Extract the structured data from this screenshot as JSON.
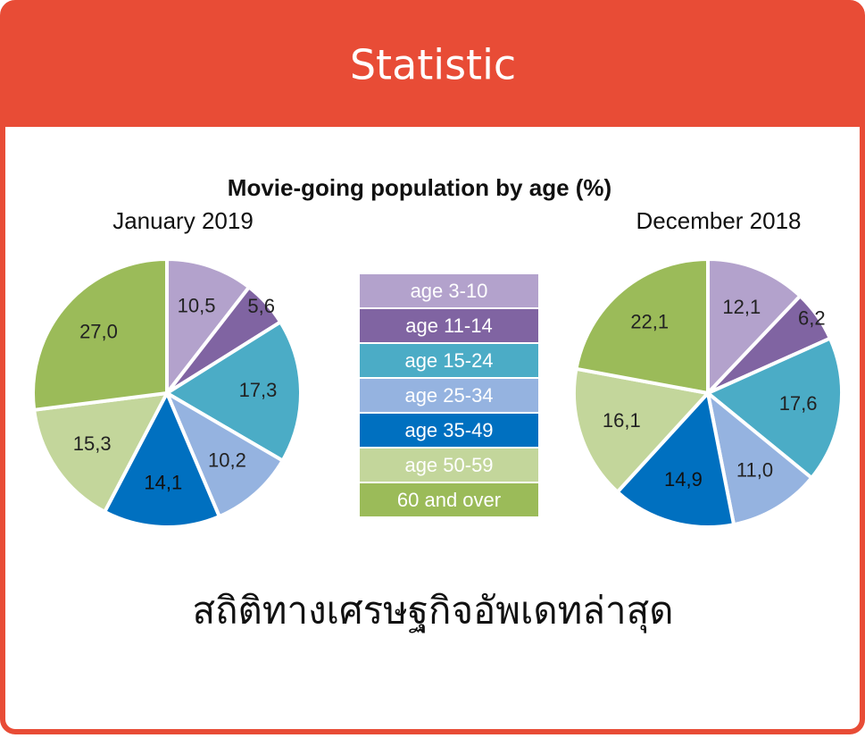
{
  "header": {
    "title": "Statistic"
  },
  "chart_data": [
    {
      "type": "pie",
      "title": "Movie-going population by age (%)",
      "subtitle": "January 2019",
      "categories": [
        "age 3-10",
        "age 11-14",
        "age 15-24",
        "age 25-34",
        "age 35-49",
        "age 50-59",
        "60 and over"
      ],
      "colors": [
        "#b3a2cc",
        "#8064a2",
        "#4bacc6",
        "#95b3e0",
        "#0070c0",
        "#c3d69b",
        "#9bbb59"
      ],
      "values": [
        10.5,
        5.6,
        17.3,
        10.2,
        14.1,
        15.3,
        27.0
      ],
      "value_labels": [
        "10,5",
        "5,6",
        "17,3",
        "10,2",
        "14,1",
        "15,3",
        "27,0"
      ]
    },
    {
      "type": "pie",
      "subtitle": "December 2018",
      "values": [
        12.1,
        6.2,
        17.6,
        11.0,
        14.9,
        16.1,
        22.1
      ],
      "value_labels": [
        "12,1",
        "6,2",
        "17,6",
        "11,0",
        "14,9",
        "16,1",
        "22,1"
      ]
    }
  ],
  "caption": "สถิติทางเศรษฐกิจอัพเดทล่าสุด"
}
